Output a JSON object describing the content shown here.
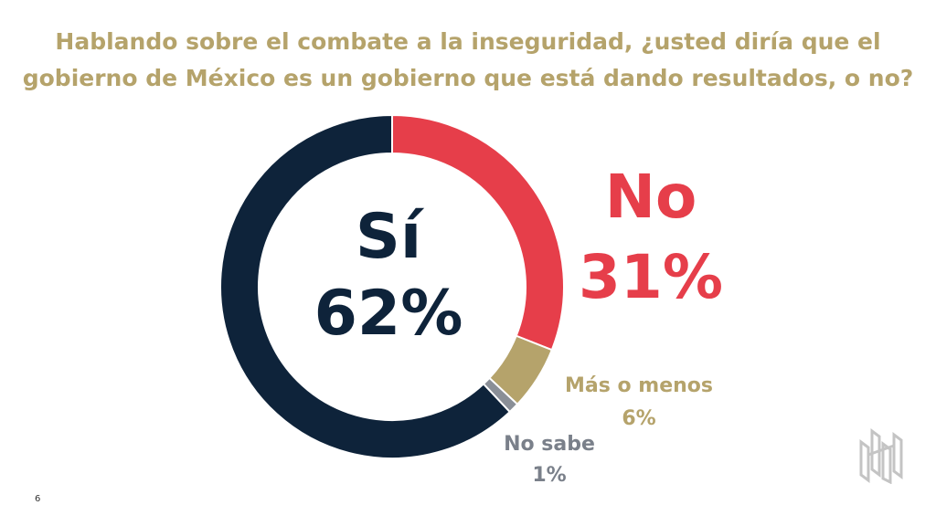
{
  "slide": {
    "title_line1": "Hablando sobre el combate a la inseguridad, ¿usted diría que el",
    "title_line2": "gobierno de México es un gobierno que está dando resultados, o no?",
    "page_number": "6"
  },
  "colors": {
    "si": "#0e233a",
    "no": "#e63e4a",
    "mas_o_menos": "#b5a36b",
    "no_sabe": "#8a8f97",
    "title": "#b5a36b",
    "logo": "#c4c4c4"
  },
  "chart_data": {
    "type": "pie",
    "donut": true,
    "start": "top",
    "direction": "clockwise",
    "slices": [
      {
        "name": "No",
        "value": 31,
        "label": "31%",
        "color": "#e63e4a"
      },
      {
        "name": "Más o menos",
        "value": 6,
        "label": "6%",
        "color": "#b5a36b"
      },
      {
        "name": "No sabe",
        "value": 1,
        "label": "1%",
        "color": "#8a8f97"
      },
      {
        "name": "Sí",
        "value": 62,
        "label": "62%",
        "color": "#0e233a"
      }
    ]
  }
}
